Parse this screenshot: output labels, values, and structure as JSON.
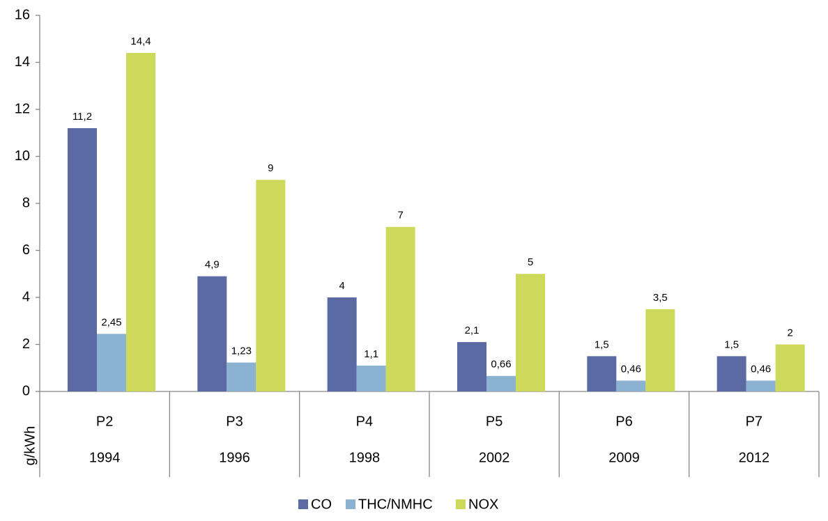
{
  "chart_data": {
    "type": "bar",
    "y_label": "g/kWh",
    "categories": [
      "P2",
      "P3",
      "P4",
      "P5",
      "P6",
      "P7"
    ],
    "category_years": [
      "1994",
      "1996",
      "1998",
      "2002",
      "2009",
      "2012"
    ],
    "series": [
      {
        "name": "CO",
        "color": "#5c6aa3",
        "values": [
          11.2,
          4.9,
          4,
          2.1,
          1.5,
          1.5
        ],
        "value_labels": [
          "11,2",
          "4,9",
          "4",
          "2,1",
          "1,5",
          "1,5"
        ]
      },
      {
        "name": "THC/NMHC",
        "color": "#8cb2d1",
        "values": [
          2.45,
          1.23,
          1.1,
          0.66,
          0.46,
          0.46
        ],
        "value_labels": [
          "2,45",
          "1,23",
          "1,1",
          "0,66",
          "0,46",
          "0,46"
        ]
      },
      {
        "name": "NOX",
        "color": "#cdd95a",
        "values": [
          14.4,
          9,
          7,
          5,
          3.5,
          2
        ],
        "value_labels": [
          "14,4",
          "9",
          "7",
          "5",
          "3,5",
          "2"
        ]
      }
    ],
    "ylim": [
      0,
      16
    ],
    "yticks": [
      0,
      2,
      4,
      6,
      8,
      10,
      12,
      14,
      16
    ],
    "grid": false,
    "legend": "bottom"
  }
}
